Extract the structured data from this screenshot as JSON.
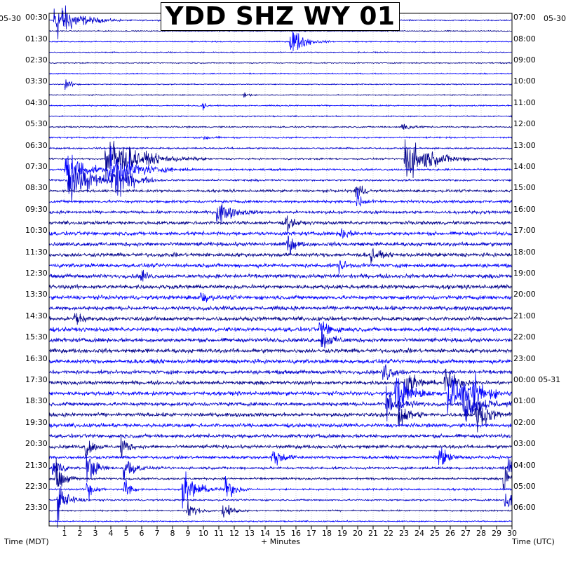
{
  "title": "YDD SHZ WY 01",
  "dates": {
    "left": "05-30",
    "right": "05-30",
    "right_rollover": "05-31"
  },
  "axis": {
    "left_label": "Time (MDT)",
    "bottom_label": "+ Minutes",
    "right_label": "Time (UTC)"
  },
  "colors": {
    "background": "#ffffff",
    "trace_cycle": [
      "#0000cd",
      "#00008b",
      "#0000ff"
    ],
    "clip": "#ff0000",
    "grid": "#c8c8c8",
    "frame": "#000000"
  },
  "chart_data": {
    "type": "helicorder",
    "title": "YDD SHZ WY 01",
    "xlabel": "+ Minutes",
    "xlim": [
      0,
      30
    ],
    "x_ticks": [
      1,
      2,
      3,
      4,
      5,
      6,
      7,
      8,
      9,
      10,
      11,
      12,
      13,
      14,
      15,
      16,
      17,
      18,
      19,
      20,
      21,
      22,
      23,
      24,
      25,
      26,
      27,
      28,
      29,
      30
    ],
    "rows_per_hour": 2,
    "row_count": 48,
    "left_tick_labels": [
      "00:30",
      "01:30",
      "02:30",
      "03:30",
      "04:30",
      "05:30",
      "06:30",
      "07:30",
      "08:30",
      "09:30",
      "10:30",
      "11:30",
      "12:30",
      "13:30",
      "14:30",
      "15:30",
      "16:30",
      "17:30",
      "18:30",
      "19:30",
      "20:30",
      "21:30",
      "22:30",
      "23:30"
    ],
    "right_tick_labels": [
      "07:00",
      "08:00",
      "09:00",
      "10:00",
      "11:00",
      "12:00",
      "13:00",
      "14:00",
      "15:00",
      "16:00",
      "17:00",
      "18:00",
      "19:00",
      "20:00",
      "21:00",
      "22:00",
      "23:00",
      "00:00 05-31",
      "01:00",
      "02:00",
      "03:00",
      "04:00",
      "05:00",
      "06:00"
    ],
    "noise_by_row": [
      0.06,
      0.05,
      0.05,
      0.05,
      0.05,
      0.05,
      0.05,
      0.05,
      0.06,
      0.06,
      0.07,
      0.07,
      0.08,
      0.08,
      0.09,
      0.09,
      0.12,
      0.13,
      0.14,
      0.16,
      0.17,
      0.18,
      0.18,
      0.18,
      0.19,
      0.19,
      0.19,
      0.19,
      0.19,
      0.19,
      0.19,
      0.19,
      0.19,
      0.18,
      0.18,
      0.18,
      0.18,
      0.18,
      0.18,
      0.17,
      0.16,
      0.14,
      0.12,
      0.1,
      0.09,
      0.08,
      0.07,
      0.06
    ],
    "events": [
      {
        "row": 0,
        "minute": 0.3,
        "amplitude": 2.6,
        "duration_min": 2.0
      },
      {
        "row": 2,
        "minute": 15.6,
        "amplitude": 1.9,
        "duration_min": 1.2
      },
      {
        "row": 6,
        "minute": 1.0,
        "amplitude": 0.7,
        "duration_min": 0.6
      },
      {
        "row": 7,
        "minute": 12.6,
        "amplitude": 1.0,
        "duration_min": 0.3
      },
      {
        "row": 8,
        "minute": 9.9,
        "amplitude": 0.7,
        "duration_min": 0.3
      },
      {
        "row": 10,
        "minute": 22.8,
        "amplitude": 0.6,
        "duration_min": 0.8
      },
      {
        "row": 11,
        "minute": 10.0,
        "amplitude": 0.4,
        "duration_min": 0.6
      },
      {
        "row": 13,
        "minute": 3.6,
        "amplitude": 2.8,
        "duration_min": 3.0
      },
      {
        "row": 13,
        "minute": 23.0,
        "amplitude": 2.4,
        "duration_min": 2.6
      },
      {
        "row": 14,
        "minute": 1.0,
        "amplitude": 2.5,
        "duration_min": 1.6
      },
      {
        "row": 14,
        "minute": 3.8,
        "amplitude": 2.2,
        "duration_min": 2.6
      },
      {
        "row": 15,
        "minute": 1.2,
        "amplitude": 2.4,
        "duration_min": 2.4
      },
      {
        "row": 15,
        "minute": 4.0,
        "amplitude": 2.4,
        "duration_min": 1.6
      },
      {
        "row": 16,
        "minute": 19.8,
        "amplitude": 1.5,
        "duration_min": 0.6
      },
      {
        "row": 17,
        "minute": 19.9,
        "amplitude": 1.4,
        "duration_min": 0.6
      },
      {
        "row": 18,
        "minute": 10.8,
        "amplitude": 1.4,
        "duration_min": 1.4
      },
      {
        "row": 19,
        "minute": 15.3,
        "amplitude": 1.3,
        "duration_min": 0.6
      },
      {
        "row": 20,
        "minute": 18.8,
        "amplitude": 1.2,
        "duration_min": 0.6
      },
      {
        "row": 21,
        "minute": 15.4,
        "amplitude": 1.6,
        "duration_min": 0.6
      },
      {
        "row": 22,
        "minute": 20.8,
        "amplitude": 1.3,
        "duration_min": 0.6
      },
      {
        "row": 23,
        "minute": 18.7,
        "amplitude": 1.0,
        "duration_min": 0.6
      },
      {
        "row": 24,
        "minute": 5.9,
        "amplitude": 1.0,
        "duration_min": 0.5
      },
      {
        "row": 26,
        "minute": 9.8,
        "amplitude": 1.3,
        "duration_min": 0.5
      },
      {
        "row": 28,
        "minute": 1.6,
        "amplitude": 1.5,
        "duration_min": 0.6
      },
      {
        "row": 29,
        "minute": 17.5,
        "amplitude": 1.2,
        "duration_min": 1.0
      },
      {
        "row": 30,
        "minute": 17.6,
        "amplitude": 1.0,
        "duration_min": 1.0
      },
      {
        "row": 33,
        "minute": 21.6,
        "amplitude": 1.6,
        "duration_min": 0.8
      },
      {
        "row": 34,
        "minute": 23.0,
        "amplitude": 1.8,
        "duration_min": 1.0
      },
      {
        "row": 34,
        "minute": 25.6,
        "amplitude": 1.8,
        "duration_min": 1.0
      },
      {
        "row": 35,
        "minute": 22.4,
        "amplitude": 2.2,
        "duration_min": 1.4
      },
      {
        "row": 35,
        "minute": 25.8,
        "amplitude": 2.2,
        "duration_min": 1.6
      },
      {
        "row": 35,
        "minute": 27.4,
        "amplitude": 2.0,
        "duration_min": 1.2
      },
      {
        "row": 36,
        "minute": 21.8,
        "amplitude": 2.0,
        "duration_min": 1.2
      },
      {
        "row": 36,
        "minute": 26.8,
        "amplitude": 2.2,
        "duration_min": 1.6
      },
      {
        "row": 37,
        "minute": 22.6,
        "amplitude": 1.6,
        "duration_min": 1.0
      },
      {
        "row": 37,
        "minute": 27.6,
        "amplitude": 1.8,
        "duration_min": 1.2
      },
      {
        "row": 40,
        "minute": 2.3,
        "amplitude": 1.8,
        "duration_min": 0.6
      },
      {
        "row": 40,
        "minute": 4.6,
        "amplitude": 1.8,
        "duration_min": 0.6
      },
      {
        "row": 41,
        "minute": 14.4,
        "amplitude": 1.2,
        "duration_min": 1.0
      },
      {
        "row": 41,
        "minute": 25.2,
        "amplitude": 1.6,
        "duration_min": 0.8
      },
      {
        "row": 42,
        "minute": 0.2,
        "amplitude": 2.2,
        "duration_min": 0.6
      },
      {
        "row": 42,
        "minute": 2.4,
        "amplitude": 2.2,
        "duration_min": 0.8
      },
      {
        "row": 42,
        "minute": 4.8,
        "amplitude": 2.2,
        "duration_min": 0.8
      },
      {
        "row": 42,
        "minute": 29.7,
        "amplitude": 2.2,
        "duration_min": 0.3
      },
      {
        "row": 43,
        "minute": 0.4,
        "amplitude": 2.0,
        "duration_min": 0.8
      },
      {
        "row": 43,
        "minute": 29.4,
        "amplitude": 2.2,
        "duration_min": 0.6
      },
      {
        "row": 44,
        "minute": 8.6,
        "amplitude": 2.0,
        "duration_min": 1.4
      },
      {
        "row": 44,
        "minute": 11.4,
        "amplitude": 1.6,
        "duration_min": 0.8
      },
      {
        "row": 44,
        "minute": 2.4,
        "amplitude": 1.8,
        "duration_min": 0.6
      },
      {
        "row": 44,
        "minute": 4.8,
        "amplitude": 1.8,
        "duration_min": 0.6
      },
      {
        "row": 45,
        "minute": 0.5,
        "amplitude": 2.2,
        "duration_min": 1.0
      },
      {
        "row": 45,
        "minute": 29.5,
        "amplitude": 2.2,
        "duration_min": 0.6
      },
      {
        "row": 46,
        "minute": 8.9,
        "amplitude": 1.2,
        "duration_min": 0.8
      },
      {
        "row": 46,
        "minute": 11.2,
        "amplitude": 1.0,
        "duration_min": 0.8
      }
    ]
  }
}
